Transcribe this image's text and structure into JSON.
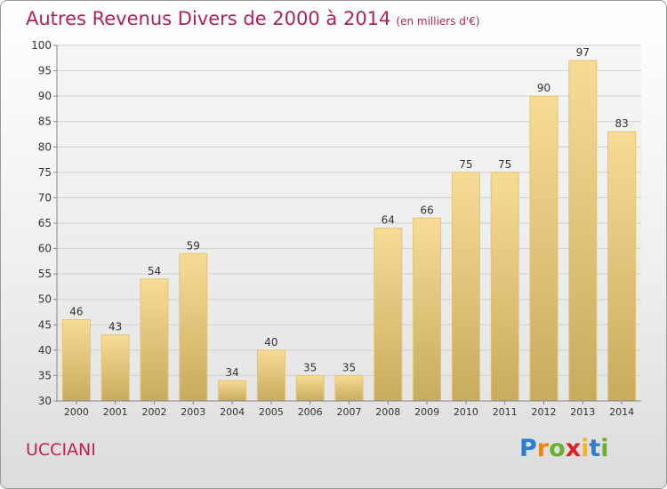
{
  "title": "Autres Revenus Divers de 2000 à 2014",
  "subtitle": "(en milliers d'€)",
  "place": "UCCIANI",
  "logo": {
    "letters": [
      "P",
      "r",
      "o",
      "x",
      "i",
      "t",
      "i"
    ],
    "colors": [
      "#2a7fcf",
      "#e8841a",
      "#6ab02c",
      "#e21e26",
      "#f0b71c",
      "#2a7fcf",
      "#6ab02c"
    ]
  },
  "chart_data": {
    "type": "bar",
    "categories": [
      "2000",
      "2001",
      "2002",
      "2003",
      "2004",
      "2005",
      "2006",
      "2007",
      "2008",
      "2009",
      "2010",
      "2011",
      "2012",
      "2013",
      "2014"
    ],
    "values": [
      46,
      43,
      54,
      59,
      34,
      40,
      35,
      35,
      64,
      66,
      75,
      75,
      90,
      97,
      83
    ],
    "ylim": [
      30,
      100
    ],
    "yticks": [
      30,
      35,
      40,
      45,
      50,
      55,
      60,
      65,
      70,
      75,
      80,
      85,
      90,
      95,
      100
    ],
    "grid": true,
    "bar_color": "#e8c97a"
  }
}
